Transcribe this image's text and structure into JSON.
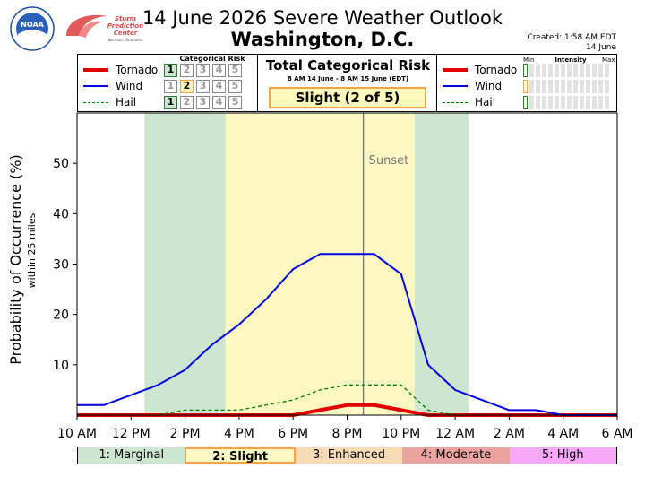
{
  "header": {
    "title_line1": "14 June 2026 Severe Weather Outlook",
    "title_line2": "Washington, D.C.",
    "created_line1": "Created: 1:58 AM EDT",
    "created_line2": "14 June"
  },
  "logos": {
    "noaa_text": "NOAA",
    "spc_lines": [
      "Storm",
      "Prediction",
      "Center"
    ],
    "spc_sub": "Norman, Oklahoma"
  },
  "legend_left": {
    "header": "Categorical Risk",
    "items": [
      {
        "label": "Tornado",
        "color": "#e00000",
        "highlight": 1,
        "highlight_color": "#2e7d32"
      },
      {
        "label": "Wind",
        "color": "#0000e0",
        "highlight": 2,
        "highlight_color": "#f4a447"
      },
      {
        "label": "Hail",
        "color": "#008000",
        "highlight": 1,
        "highlight_color": "#2e7d32"
      }
    ],
    "levels": [
      "1",
      "2",
      "3",
      "4",
      "5"
    ]
  },
  "legend_mid": {
    "title": "Total Categorical Risk",
    "subtitle": "8 AM 14 June - 8 AM 15 June (EDT)",
    "risk": "Slight (2 of 5)"
  },
  "legend_right": {
    "header": "Intensity",
    "min_label": "Min",
    "max_label": "Max",
    "items": [
      "Tornado",
      "Wind",
      "Hail"
    ],
    "first_colors": [
      "#2e7d32",
      "#f4a447",
      "#2e7d32"
    ]
  },
  "chart_data": {
    "type": "line",
    "ylabel": "Probability of Occurrence (%)",
    "ylabel_sub": "within 25 miles",
    "x_tick_labels": [
      "10 AM",
      "12 PM",
      "2 PM",
      "4 PM",
      "6 PM",
      "8 PM",
      "10 PM",
      "12 AM",
      "2 AM",
      "4 AM",
      "6 AM"
    ],
    "x_range_hours": [
      10,
      30
    ],
    "y_ticks": [
      10,
      20,
      30,
      40,
      50
    ],
    "ylim": [
      0,
      60
    ],
    "x_hours": [
      10,
      11,
      12,
      13,
      14,
      15,
      16,
      17,
      18,
      19,
      20,
      21,
      22,
      23,
      24,
      25,
      26,
      27,
      28,
      29,
      30
    ],
    "series": [
      {
        "name": "Tornado",
        "color": "#e00000",
        "width": 4,
        "dash": "",
        "values": [
          0,
          0,
          0,
          0,
          0,
          0,
          0,
          0,
          0,
          1,
          2,
          2,
          1,
          0,
          0,
          0,
          0,
          0,
          0,
          0,
          0
        ]
      },
      {
        "name": "Wind",
        "color": "#0000e0",
        "width": 2,
        "dash": "",
        "values": [
          2,
          2,
          4,
          6,
          9,
          14,
          18,
          23,
          29,
          32,
          32,
          32,
          28,
          10,
          5,
          3,
          1,
          1,
          0,
          0,
          0
        ]
      },
      {
        "name": "Hail",
        "color": "#008000",
        "width": 1.3,
        "dash": "4,3",
        "values": [
          0,
          0,
          0,
          0,
          1,
          1,
          1,
          2,
          3,
          5,
          6,
          6,
          6,
          1,
          0,
          0,
          0,
          0,
          0,
          0,
          0
        ]
      }
    ],
    "risk_shading": [
      {
        "from": 12.5,
        "to": 15.5,
        "level": 1,
        "color": "#cde6cf"
      },
      {
        "from": 15.5,
        "to": 22.5,
        "level": 2,
        "color": "#fbf8c4"
      },
      {
        "from": 22.5,
        "to": 24.5,
        "level": 1,
        "color": "#cde6cf"
      }
    ],
    "sunset": {
      "hour": 20.6,
      "label": "Sunset"
    },
    "grid": false
  },
  "category_bar": [
    {
      "label": "1: Marginal",
      "color": "#cde6cf",
      "border": ""
    },
    {
      "label": "2: Slight",
      "color": "#fbf8c4",
      "border": "#f4a447",
      "bold": true
    },
    {
      "label": "3: Enhanced",
      "color": "#f7dcb6",
      "border": ""
    },
    {
      "label": "4: Moderate",
      "color": "#eba3a0",
      "border": ""
    },
    {
      "label": "5: High",
      "color": "#f7a8f7",
      "border": ""
    }
  ]
}
